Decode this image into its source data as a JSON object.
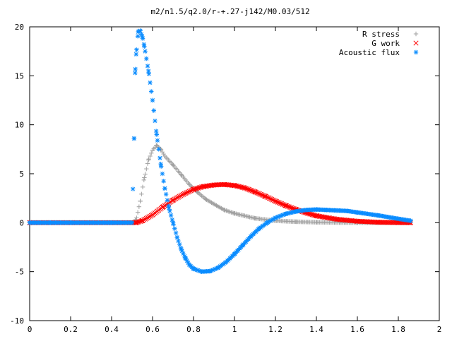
{
  "chart_data": {
    "type": "scatter",
    "title": "m2/n1.5/q2.0/r-+.27-j142/M0.03/512",
    "xlabel": "",
    "ylabel": "",
    "xlim": [
      0,
      2
    ],
    "ylim": [
      -10,
      20
    ],
    "xticks": [
      "0",
      "0.2",
      "0.4",
      "0.6",
      "0.8",
      "1",
      "1.2",
      "1.4",
      "1.6",
      "1.8",
      "2"
    ],
    "yticks": [
      "-10",
      "-5",
      "0",
      "5",
      "10",
      "15",
      "20"
    ],
    "legend_position": "top-right",
    "grid": false,
    "series": [
      {
        "name": "R stress",
        "marker": "+",
        "color": "#a0a0a0",
        "x": [
          0.0,
          0.1,
          0.2,
          0.3,
          0.4,
          0.5,
          0.52,
          0.54,
          0.56,
          0.58,
          0.6,
          0.62,
          0.64,
          0.66,
          0.7,
          0.74,
          0.78,
          0.82,
          0.86,
          0.9,
          0.95,
          1.0,
          1.1,
          1.2,
          1.3,
          1.4,
          1.5,
          1.6,
          1.7,
          1.8,
          1.86
        ],
        "y": [
          0,
          0,
          0,
          0,
          0,
          0,
          0.3,
          2.2,
          4.6,
          6.4,
          7.4,
          7.9,
          7.5,
          6.8,
          5.9,
          4.9,
          3.9,
          3.1,
          2.4,
          1.9,
          1.3,
          0.95,
          0.45,
          0.2,
          0.1,
          0.05,
          0.02,
          0.01,
          0.0,
          0.0,
          0.0
        ]
      },
      {
        "name": "G work",
        "marker": "x",
        "color": "#ff0000",
        "x": [
          0.0,
          0.1,
          0.2,
          0.3,
          0.4,
          0.5,
          0.52,
          0.55,
          0.6,
          0.65,
          0.7,
          0.75,
          0.8,
          0.85,
          0.9,
          0.95,
          1.0,
          1.05,
          1.1,
          1.15,
          1.2,
          1.25,
          1.3,
          1.35,
          1.4,
          1.5,
          1.6,
          1.7,
          1.8,
          1.86
        ],
        "y": [
          0,
          0,
          0,
          0,
          0,
          0,
          0.0,
          0.2,
          0.8,
          1.6,
          2.3,
          2.9,
          3.4,
          3.7,
          3.85,
          3.9,
          3.8,
          3.55,
          3.15,
          2.7,
          2.2,
          1.75,
          1.35,
          1.0,
          0.7,
          0.35,
          0.15,
          0.05,
          0.01,
          0.0
        ]
      },
      {
        "name": "Acoustic flux",
        "marker": "*",
        "color": "#0a8cff",
        "x": [
          0.0,
          0.1,
          0.2,
          0.3,
          0.4,
          0.5,
          0.51,
          0.515,
          0.52,
          0.53,
          0.54,
          0.55,
          0.56,
          0.58,
          0.6,
          0.62,
          0.64,
          0.66,
          0.68,
          0.7,
          0.72,
          0.74,
          0.76,
          0.78,
          0.8,
          0.84,
          0.88,
          0.92,
          0.96,
          1.0,
          1.04,
          1.08,
          1.12,
          1.16,
          1.2,
          1.25,
          1.3,
          1.35,
          1.4,
          1.45,
          1.5,
          1.55,
          1.6,
          1.7,
          1.8,
          1.86
        ],
        "y": [
          0,
          0,
          0,
          0,
          0,
          0,
          8.6,
          15.3,
          17.2,
          19.5,
          19.6,
          19.0,
          18.0,
          15.5,
          12.5,
          9.0,
          6.0,
          3.5,
          1.5,
          0.0,
          -1.5,
          -2.7,
          -3.6,
          -4.3,
          -4.7,
          -5.0,
          -4.95,
          -4.6,
          -4.0,
          -3.2,
          -2.3,
          -1.4,
          -0.6,
          0.0,
          0.5,
          0.9,
          1.15,
          1.3,
          1.35,
          1.3,
          1.25,
          1.2,
          1.05,
          0.75,
          0.4,
          0.2
        ]
      }
    ]
  }
}
